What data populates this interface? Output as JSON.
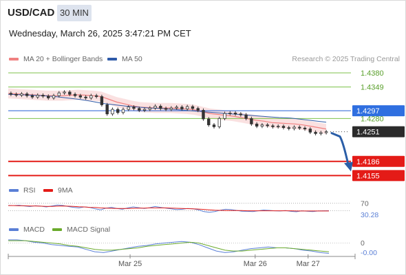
{
  "header": {
    "symbol": "USD/CAD",
    "timeframe": "30 MIN",
    "timestamp": "Wednesday, March 26, 2025 3:47:21 PM CET",
    "credit": "Research © 2025 Trading Central"
  },
  "chart_data": {
    "type": "line",
    "legend": [
      {
        "name": "MA 20 + Bollinger Bands",
        "color": "#f08080"
      },
      {
        "name": "MA 50",
        "color": "#2e5aa8"
      }
    ],
    "price_ylim": [
      1.4145,
      1.4395
    ],
    "levels": [
      {
        "label": "1.4380",
        "value": 1.438,
        "color": "#7cc24a",
        "kind": "target"
      },
      {
        "label": "1.4349",
        "value": 1.4349,
        "color": "#7cc24a",
        "kind": "target"
      },
      {
        "label": "1.4297",
        "value": 1.4297,
        "color": "#3a6fd8",
        "kind": "pivot"
      },
      {
        "label": "1.4280",
        "value": 1.428,
        "color": "#7cc24a",
        "kind": "target"
      },
      {
        "label": "1.4251",
        "value": 1.4251,
        "color": "#222222",
        "kind": "last"
      },
      {
        "label": "1.4186",
        "value": 1.4186,
        "color": "#e41b17",
        "kind": "support"
      },
      {
        "label": "1.4155",
        "value": 1.4155,
        "color": "#e41b17",
        "kind": "support"
      }
    ],
    "price_series": [
      1.4333,
      1.4331,
      1.4334,
      1.433,
      1.4327,
      1.4331,
      1.4329,
      1.4325,
      1.433,
      1.4336,
      1.4338,
      1.4333,
      1.433,
      1.4327,
      1.4325,
      1.433,
      1.4328,
      1.431,
      1.429,
      1.43,
      1.4293,
      1.43,
      1.4305,
      1.4302,
      1.4298,
      1.43,
      1.4303,
      1.4307,
      1.4302,
      1.43,
      1.4303,
      1.4305,
      1.4301,
      1.4306,
      1.4302,
      1.4298,
      1.4279,
      1.4266,
      1.4262,
      1.428,
      1.4291,
      1.4292,
      1.429,
      1.4288,
      1.428,
      1.4268,
      1.4263,
      1.4266,
      1.4264,
      1.4262,
      1.4263,
      1.426,
      1.4258,
      1.4261,
      1.4259,
      1.4257,
      1.425,
      1.4247,
      1.4249,
      1.4251
    ],
    "ma20_series": [
      1.4335,
      1.4334,
      1.4333,
      1.4332,
      1.4331,
      1.433,
      1.433,
      1.433,
      1.4331,
      1.4332,
      1.4331,
      1.433,
      1.4328,
      1.4322,
      1.4316,
      1.4312,
      1.4308,
      1.4305,
      1.4304,
      1.4303,
      1.4303,
      1.4303,
      1.4302,
      1.4301,
      1.4299,
      1.4295,
      1.4291,
      1.4289,
      1.4287,
      1.4285,
      1.4282,
      1.4279,
      1.4276,
      1.4274,
      1.4271,
      1.427,
      1.4269,
      1.4268,
      1.4266,
      1.4263,
      1.426,
      1.4257
    ],
    "ma50_series": [
      1.4333,
      1.4332,
      1.4331,
      1.433,
      1.4328,
      1.4325,
      1.4322,
      1.4318,
      1.4313,
      1.431,
      1.4307,
      1.4305,
      1.4303,
      1.4302,
      1.43,
      1.4298,
      1.4296,
      1.4294,
      1.4292,
      1.429,
      1.4288,
      1.4286,
      1.4284,
      1.4282,
      1.4281,
      1.4278,
      1.4275,
      1.4272
    ],
    "forecast": {
      "from": 1.4251,
      "to": 1.4155
    },
    "x_ticks": [
      {
        "label": "Mar 25",
        "pos": 0.38
      },
      {
        "label": "Mar 26",
        "pos": 0.77
      },
      {
        "label": "Mar 27",
        "pos": 0.935
      }
    ],
    "rsi": {
      "legend": [
        {
          "name": "RSI",
          "color": "#5a7fd6"
        },
        {
          "name": "9MA",
          "color": "#e41b17"
        }
      ],
      "ylim": [
        0,
        100
      ],
      "levels": [
        {
          "label": "70",
          "value": 70
        },
        {
          "label": "30",
          "value": 30
        }
      ],
      "last_value_label": "30.28",
      "rsi_series": [
        58,
        57,
        59,
        55,
        52,
        56,
        54,
        50,
        55,
        60,
        58,
        52,
        48,
        45,
        50,
        47,
        40,
        35,
        44,
        48,
        42,
        38,
        45,
        50,
        46,
        42,
        46,
        52,
        48,
        44,
        40,
        36,
        38,
        42,
        40,
        35,
        26,
        22,
        26,
        33,
        38,
        36,
        32,
        28,
        27,
        26,
        30,
        34,
        32,
        30,
        29,
        31,
        27,
        25,
        30,
        28,
        26,
        29,
        30,
        30.28
      ],
      "ma_series": [
        57,
        57,
        56,
        56,
        55,
        55,
        54,
        53,
        53,
        54,
        55,
        54,
        53,
        51,
        50,
        48,
        47,
        45,
        44,
        43,
        42,
        42,
        42,
        43,
        44,
        44,
        45,
        45,
        45,
        45,
        44,
        43,
        42,
        41,
        40,
        39,
        37,
        35,
        33,
        32,
        31,
        31,
        31,
        31,
        30,
        30,
        30,
        30,
        30,
        30,
        30,
        30,
        30,
        29,
        29,
        29,
        29,
        29,
        29,
        29
      ]
    },
    "macd": {
      "legend": [
        {
          "name": "MACD",
          "color": "#5a7fd6"
        },
        {
          "name": "MACD Signal",
          "color": "#6aaa2c"
        }
      ],
      "ylim": [
        -0.0016,
        0.001
      ],
      "zero_label": "0",
      "last_value_label": "-0.00",
      "macd_series": [
        0.0004,
        0.0004,
        0.0003,
        0.0001,
        0.0,
        -0.0002,
        -0.0003,
        -0.0004,
        -0.0005,
        -0.0008,
        -0.0011,
        -0.0012,
        -0.001,
        -0.0008,
        -0.0006,
        -0.0004,
        -0.0003,
        -0.0001,
        0.0,
        0.0001,
        0.0002,
        0.0001,
        -0.0002,
        -0.0006,
        -0.001,
        -0.0012,
        -0.0011,
        -0.0009,
        -0.0007,
        -0.0006,
        -0.0005,
        -0.0006,
        -0.0006,
        -0.0007,
        -0.0009,
        -0.001,
        -0.0012,
        -0.0013
      ],
      "signal_series": [
        0.0003,
        0.0003,
        0.0003,
        0.0002,
        0.0001,
        0.0,
        -0.0001,
        -0.0003,
        -0.0004,
        -0.0006,
        -0.0008,
        -0.0009,
        -0.0009,
        -0.0008,
        -0.0007,
        -0.0006,
        -0.0004,
        -0.0003,
        -0.0002,
        -0.0001,
        0.0,
        0.0001,
        0.0,
        -0.0003,
        -0.0006,
        -0.0009,
        -0.001,
        -0.001,
        -0.0009,
        -0.0008,
        -0.0007,
        -0.0006,
        -0.0006,
        -0.0007,
        -0.0008,
        -0.0009,
        -0.001,
        -0.0011
      ]
    }
  }
}
